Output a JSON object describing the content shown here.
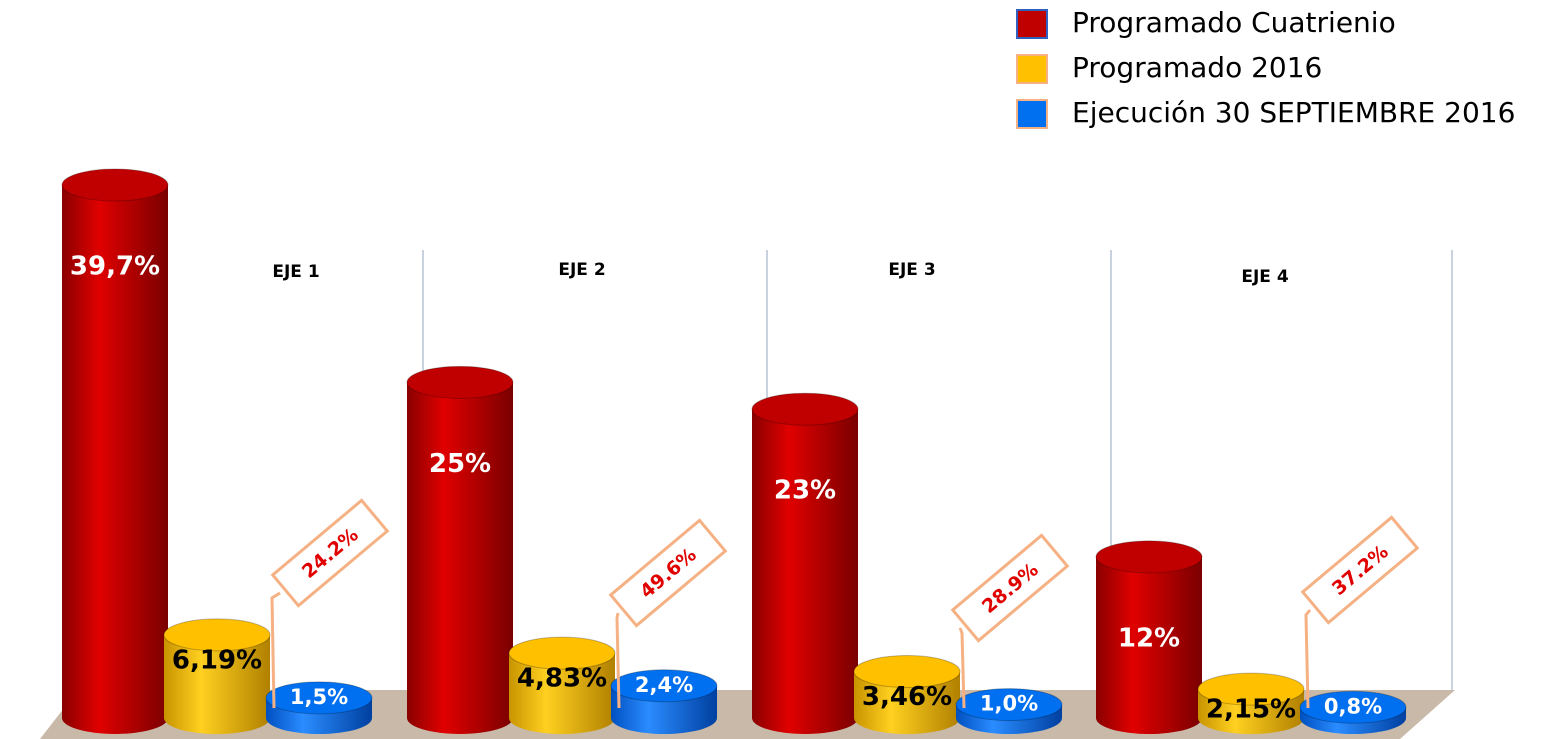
{
  "chart_data": {
    "type": "cylinder-bar",
    "categories": [
      "EJE 1",
      "EJE 2",
      "EJE 3",
      "EJE 4"
    ],
    "series": [
      {
        "name": "Programado Cuatrienio",
        "color": "#c00000",
        "values": [
          39.7,
          25,
          23,
          12
        ],
        "value_labels": [
          "39,7%",
          "25%",
          "23%",
          "12%"
        ]
      },
      {
        "name": "Programado 2016",
        "color": "#ffc000",
        "values": [
          6.19,
          4.83,
          3.46,
          2.15
        ],
        "value_labels": [
          "6,19%",
          "4,83%",
          "3,46%",
          "2,15%"
        ]
      },
      {
        "name": "Ejecución 30 SEPTIEMBRE 2016",
        "color": "#0070f0",
        "values": [
          1.5,
          2.4,
          1.0,
          0.8
        ],
        "value_labels": [
          "1,5%",
          "2,4%",
          "1,0%",
          "0,8%"
        ]
      }
    ],
    "annotations": [
      "24.2%",
      "49.6%",
      "28.9%",
      "37.2%"
    ],
    "legend": "top-right"
  }
}
